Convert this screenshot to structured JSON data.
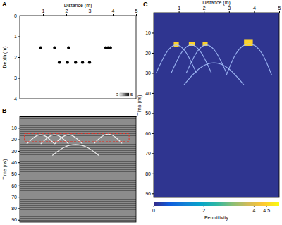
{
  "chart_data": [
    {
      "type": "scatter",
      "title": "A",
      "xlabel": "Distance (m)",
      "ylabel": "Depth (m)",
      "x": [
        0.9,
        1.5,
        2.1,
        3.7,
        3.8,
        3.9,
        1.7,
        2.05,
        2.4,
        2.7,
        3
      ],
      "values": [
        1.55,
        1.55,
        1.55,
        1.55,
        1.55,
        1.55,
        2.25,
        2.25,
        2.25,
        2.25,
        2.25
      ],
      "color": "#000000",
      "xlim": [
        0,
        5
      ],
      "ylim": [
        0,
        4
      ],
      "xticks": [
        1,
        2,
        3,
        4,
        5
      ],
      "yticks": [
        0,
        1,
        2,
        3,
        4
      ],
      "colorbar": {
        "lim": [
          3,
          5
        ],
        "ticks": [
          3,
          5
        ]
      }
    },
    {
      "type": "line",
      "title": "B",
      "ylabel": "Time (ns)",
      "tick_labels": "y",
      "xlim": [
        0,
        5
      ],
      "ylim": [
        0,
        92
      ],
      "yticks": [
        10,
        20,
        30,
        40,
        50,
        60,
        70,
        80,
        90
      ],
      "color": "#ffffff",
      "series": [
        {
          "x": [
            0.3,
            0.6,
            0.9,
            1.2,
            1.5
          ],
          "values": [
            24,
            18.5,
            16,
            18.5,
            24
          ]
        },
        {
          "x": [
            0.9,
            1.2,
            1.5,
            1.8,
            2.1
          ],
          "values": [
            24,
            18.5,
            16,
            18.5,
            24
          ]
        },
        {
          "x": [
            1.5,
            1.8,
            2.1,
            2.4,
            2.7
          ],
          "values": [
            24,
            18.5,
            16,
            18.5,
            24
          ]
        },
        {
          "x": [
            3.2,
            3.5,
            3.8,
            4.1,
            4.4
          ],
          "values": [
            23.5,
            18,
            15.5,
            18,
            23.5
          ]
        },
        {
          "x": [
            1.4,
            1.9,
            2.4,
            2.9,
            3.4
          ],
          "values": [
            34,
            27,
            24.5,
            27,
            34
          ]
        }
      ],
      "highlight": {
        "x": [
          0.2,
          4.7
        ],
        "y": [
          15,
          22
        ]
      }
    },
    {
      "type": "line",
      "title": "C",
      "xlabel": "Distance (m)",
      "ylabel": "Time (ns)",
      "xlim": [
        0,
        5
      ],
      "ylim": [
        0,
        92
      ],
      "xticks": [
        1,
        2,
        3,
        4,
        5
      ],
      "yticks": [
        10,
        20,
        30,
        40,
        50,
        60,
        70,
        80,
        90
      ],
      "color": "#a9c6ff",
      "series": [
        {
          "x": [
            0.1,
            0.5,
            0.9,
            1.3,
            1.7
          ],
          "values": [
            30,
            20,
            16,
            20,
            30
          ]
        },
        {
          "x": [
            0.7,
            1.1,
            1.5,
            1.9,
            2.3
          ],
          "values": [
            30,
            20,
            16,
            20,
            30
          ]
        },
        {
          "x": [
            1.3,
            1.7,
            2.1,
            2.5,
            2.9
          ],
          "values": [
            30,
            20,
            16,
            20,
            30
          ]
        },
        {
          "x": [
            2.9,
            3.3,
            3.8,
            4.3,
            4.7
          ],
          "values": [
            31,
            20,
            15.5,
            20,
            31
          ]
        },
        {
          "x": [
            1.2,
            1.8,
            2.4,
            3,
            3.6
          ],
          "values": [
            36,
            28,
            25,
            28,
            36
          ]
        }
      ],
      "cells": [
        {
          "x0": 0.8,
          "x1": 1,
          "y0": 14.5,
          "y1": 17,
          "value": 4.5
        },
        {
          "x0": 1.4,
          "x1": 1.65,
          "y0": 14.5,
          "y1": 16.5,
          "value": 4.5
        },
        {
          "x0": 1.95,
          "x1": 2.15,
          "y0": 14.5,
          "y1": 16.5,
          "value": 4.5
        },
        {
          "x0": 3.6,
          "x1": 3.95,
          "y0": 13.5,
          "y1": 16.5,
          "value": 4.5
        }
      ],
      "colorbar": {
        "label": "Permittivity",
        "lim": [
          0,
          5
        ],
        "ticks": [
          0,
          2,
          4,
          4.5
        ]
      }
    }
  ]
}
